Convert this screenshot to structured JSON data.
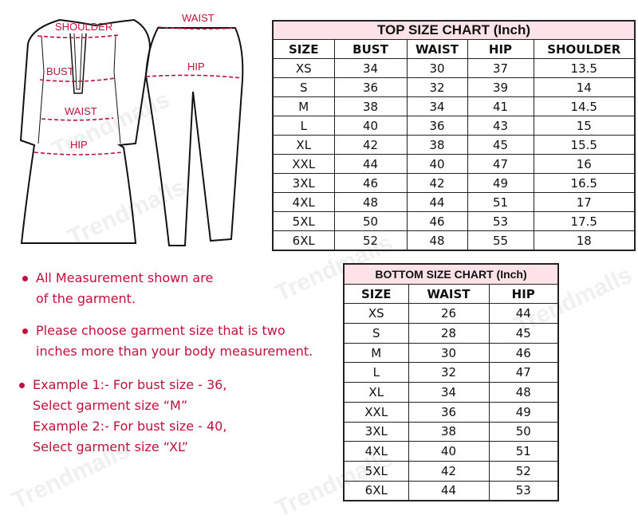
{
  "watermark": "Trendmalls",
  "figure": {
    "top_labels": [
      "SHOULDER",
      "BUST",
      "WAIST",
      "HIP"
    ],
    "bottom_labels": [
      "WAIST",
      "HIP"
    ]
  },
  "top_chart": {
    "title": "TOP SIZE CHART (Inch)",
    "headers": [
      "SIZE",
      "BUST",
      "WAIST",
      "HIP",
      "SHOULDER"
    ],
    "rows": [
      [
        "XS",
        "34",
        "30",
        "37",
        "13.5"
      ],
      [
        "S",
        "36",
        "32",
        "39",
        "14"
      ],
      [
        "M",
        "38",
        "34",
        "41",
        "14.5"
      ],
      [
        "L",
        "40",
        "36",
        "43",
        "15"
      ],
      [
        "XL",
        "42",
        "38",
        "45",
        "15.5"
      ],
      [
        "XXL",
        "44",
        "40",
        "47",
        "16"
      ],
      [
        "3XL",
        "46",
        "42",
        "49",
        "16.5"
      ],
      [
        "4XL",
        "48",
        "44",
        "51",
        "17"
      ],
      [
        "5XL",
        "50",
        "46",
        "53",
        "17.5"
      ],
      [
        "6XL",
        "52",
        "48",
        "55",
        "18"
      ]
    ]
  },
  "bottom_chart": {
    "title": "BOTTOM SIZE CHART (Inch)",
    "headers": [
      "SIZE",
      "WAIST",
      "HIP"
    ],
    "rows": [
      [
        "XS",
        "26",
        "44"
      ],
      [
        "S",
        "28",
        "45"
      ],
      [
        "M",
        "30",
        "46"
      ],
      [
        "L",
        "32",
        "47"
      ],
      [
        "XL",
        "34",
        "48"
      ],
      [
        "XXL",
        "36",
        "49"
      ],
      [
        "3XL",
        "38",
        "50"
      ],
      [
        "4XL",
        "40",
        "51"
      ],
      [
        "5XL",
        "42",
        "52"
      ],
      [
        "6XL",
        "44",
        "53"
      ]
    ]
  },
  "notes": {
    "n1": [
      "All Measurement shown are",
      "of the garment."
    ],
    "n2": [
      "Please  choose  garment  size  that is two",
      "inches more than  your body measurement."
    ],
    "n3": [
      "Example  1:-  For  bust  size  - 36,",
      "Select garment size “M”",
      "Example  2:-  For  bust  size  - 40,",
      "Select garment size  “XL”"
    ]
  },
  "colors": {
    "accent": "#c0103a",
    "title_bg": "#fde3e8"
  }
}
